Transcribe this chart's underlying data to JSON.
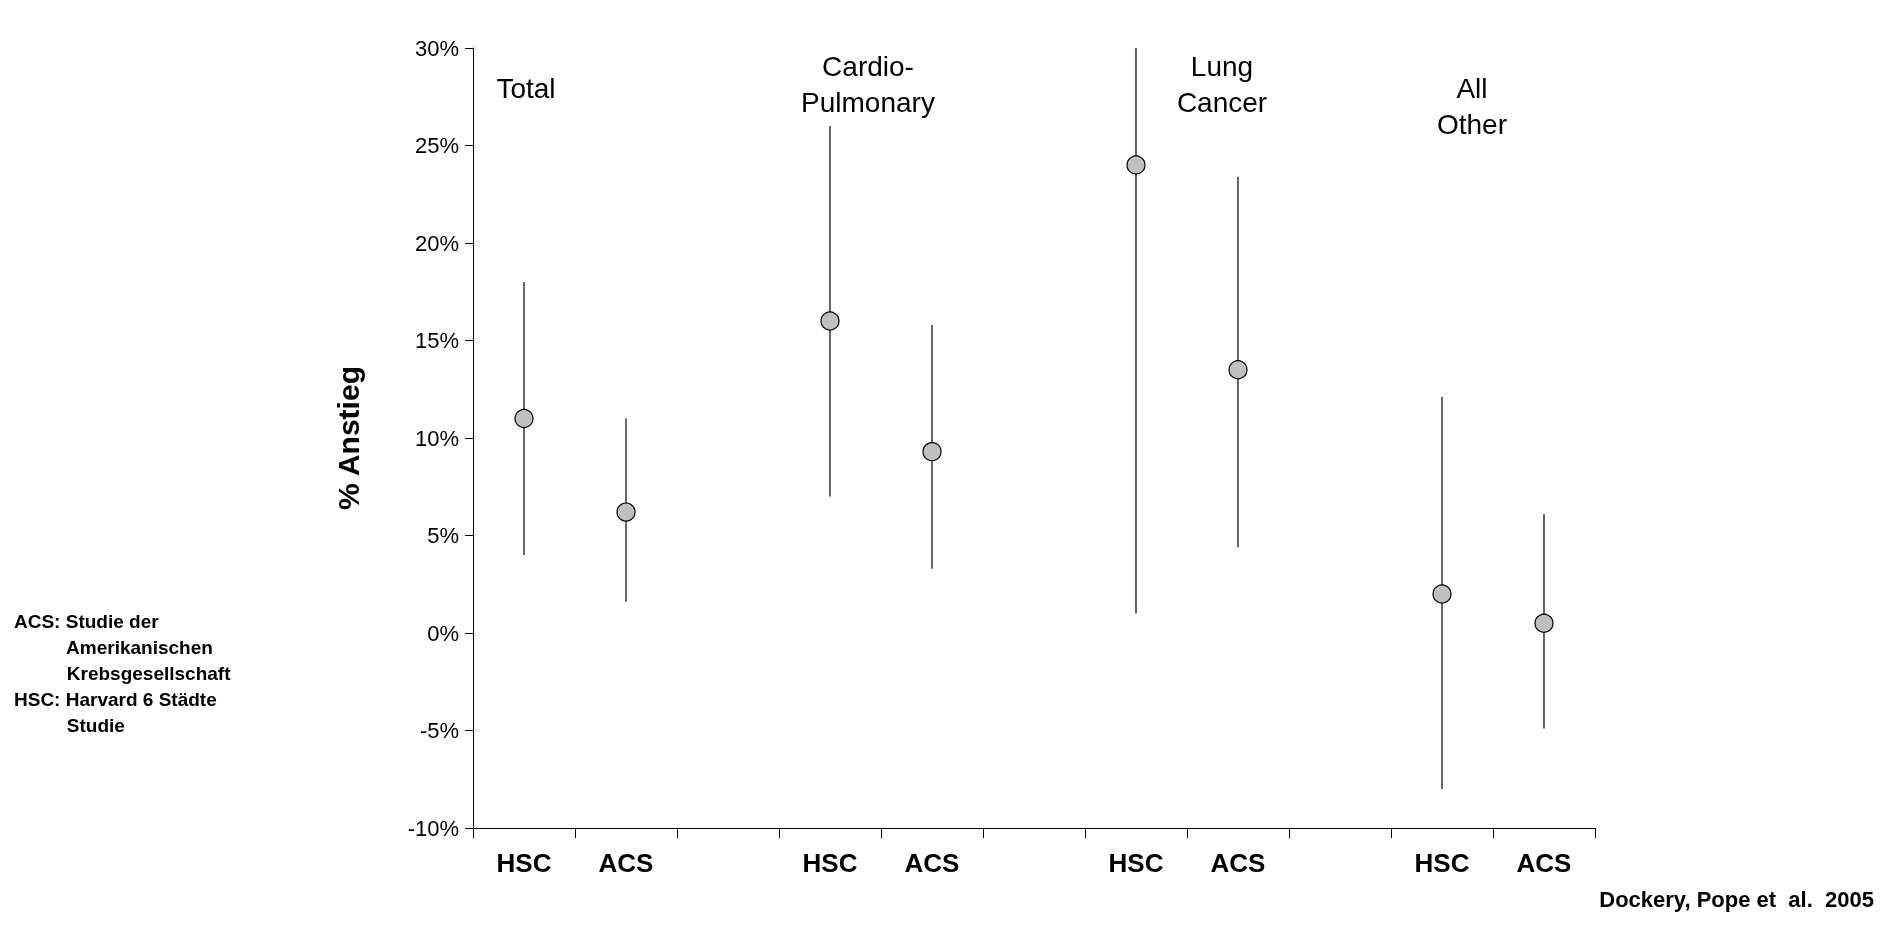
{
  "chart_data": {
    "type": "scatter",
    "ylabel": "% Anstieg",
    "categories": [
      "HSC",
      "ACS",
      null,
      "HSC",
      "ACS",
      null,
      "HSC",
      "ACS",
      null,
      "HSC",
      "ACS"
    ],
    "values": [
      11,
      6.2,
      null,
      16,
      9.3,
      null,
      24,
      13.5,
      null,
      2,
      0.5
    ],
    "errors": [
      [
        4,
        18
      ],
      [
        1.6,
        11
      ],
      null,
      [
        7,
        26
      ],
      [
        3.3,
        15.8
      ],
      null,
      [
        1,
        30
      ],
      [
        4.4,
        23.4
      ],
      null,
      [
        -8,
        12.1
      ],
      [
        -4.9,
        6.1
      ]
    ],
    "color": "#c0c0c0",
    "marker": "circle",
    "grid": false,
    "ylim": [
      -10,
      30
    ],
    "yticks": [
      {
        "value": -10,
        "label": "-10%"
      },
      {
        "value": -5,
        "label": "-5%"
      },
      {
        "value": 0,
        "label": "0%"
      },
      {
        "value": 5,
        "label": "5%"
      },
      {
        "value": 10,
        "label": "10%"
      },
      {
        "value": 15,
        "label": "15%"
      },
      {
        "value": 20,
        "label": "20%"
      },
      {
        "value": 25,
        "label": "25%"
      },
      {
        "value": 30,
        "label": "30%"
      }
    ],
    "annotations": [
      "Total",
      "Cardio-\nPulmonary",
      "Lung\nCancer",
      "All\nOther",
      "ACS: Studie der\n          Amerikanischen\n          Krebsgesellschaft\nHSC: Harvard 6 Städte\n          Studie",
      "Dockery, Pope et  al.  2005"
    ]
  }
}
